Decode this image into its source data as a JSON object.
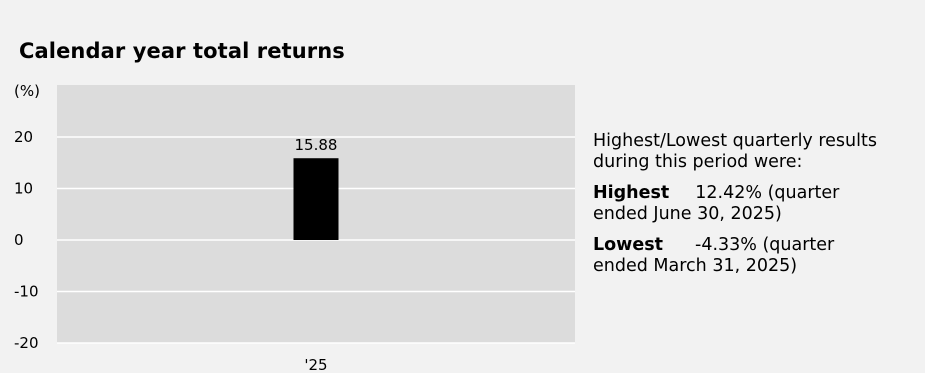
{
  "title": "Calendar year total returns",
  "chart_data": {
    "type": "bar",
    "ylabel": "(%)",
    "ylim": [
      -20,
      20
    ],
    "yticks": [
      20,
      10,
      0,
      -10,
      -20
    ],
    "categories": [
      "'25"
    ],
    "values": [
      15.88
    ],
    "data_labels": [
      "15.88"
    ],
    "grid": true,
    "bar_color": "#000000",
    "plot_background": "#dcdcdc"
  },
  "summary": {
    "intro": "Highest/Lowest quarterly results during this period were:",
    "highest_label": "Highest",
    "highest_value": "12.42% (quarter",
    "highest_detail": "ended June 30, 2025)",
    "lowest_label": "Lowest",
    "lowest_value": "-4.33% (quarter",
    "lowest_detail": "ended March 31, 2025)"
  }
}
